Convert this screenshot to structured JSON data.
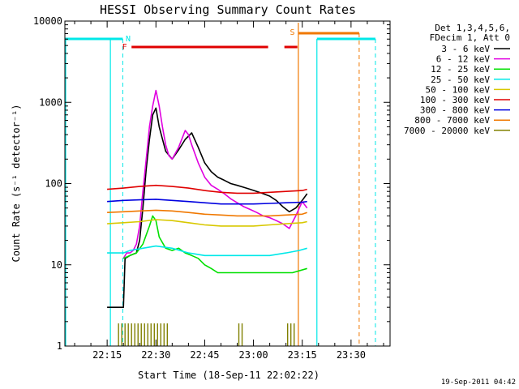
{
  "chart_data": {
    "type": "line",
    "title": "HESSI Observing Summary Count Rates",
    "xlabel": "Start Time (18-Sep-11 22:02:22)",
    "ylabel": "Count Rate (s⁻¹ detector⁻¹)",
    "y_scale": "log",
    "ylim": [
      1,
      10000
    ],
    "y_ticks": [
      1,
      10,
      100,
      1000,
      10000
    ],
    "y_tick_labels": [
      "1",
      "10",
      "100",
      "1000",
      "10000"
    ],
    "x_ticks": [
      "22:15",
      "22:30",
      "22:45",
      "23:00",
      "23:15",
      "23:30"
    ],
    "x_range_minutes": [
      0,
      100
    ],
    "x_tick_minutes": [
      13,
      28,
      43,
      58,
      73,
      88
    ],
    "legend": {
      "position": "top-right",
      "header": [
        "Det 1,3,4,5,6,",
        "FDecim 1, Att 0"
      ],
      "entries": [
        {
          "label": "3 - 6 keV",
          "color": "#000000"
        },
        {
          "label": "6 - 12 keV",
          "color": "#e000e0"
        },
        {
          "label": "12 - 25 keV",
          "color": "#00e000"
        },
        {
          "label": "25 - 50 keV",
          "color": "#00e8e8"
        },
        {
          "label": "50 - 100 keV",
          "color": "#d8c800"
        },
        {
          "label": "100 - 300 keV",
          "color": "#e00000"
        },
        {
          "label": "300 - 800 keV",
          "color": "#0000e0"
        },
        {
          "label": "800 - 7000 keV",
          "color": "#f07800"
        },
        {
          "label": "7000 - 20000 keV",
          "color": "#808000"
        }
      ]
    },
    "flags": {
      "night_label": "N",
      "flare_label": "F",
      "saa_label": "S"
    },
    "series": [
      {
        "name": "3 - 6 keV",
        "x": [
          13,
          15,
          18,
          18.5,
          20,
          22,
          23,
          24,
          25,
          26,
          27,
          28,
          29,
          31,
          33,
          35,
          37,
          39,
          41,
          43,
          45,
          47,
          49,
          51,
          53,
          55,
          57,
          59,
          61,
          63,
          65,
          67,
          69,
          71,
          73,
          74.5
        ],
        "y": [
          3,
          3,
          3,
          12,
          13,
          14,
          20,
          50,
          150,
          350,
          700,
          850,
          500,
          250,
          200,
          260,
          350,
          420,
          280,
          180,
          140,
          120,
          110,
          100,
          95,
          90,
          85,
          80,
          75,
          70,
          62,
          52,
          45,
          50,
          62,
          75
        ]
      },
      {
        "name": "6 - 12 keV",
        "x": [
          18,
          19,
          20,
          21,
          22,
          23,
          24,
          25,
          26,
          27,
          28,
          29,
          30,
          31,
          32,
          33,
          35,
          37,
          38,
          39,
          41,
          43,
          45,
          47,
          49,
          51,
          53,
          55,
          57,
          59,
          61,
          63,
          65,
          67,
          69,
          71,
          73,
          74.5
        ],
        "y": [
          12,
          14,
          14,
          15,
          18,
          30,
          80,
          200,
          500,
          900,
          1400,
          900,
          500,
          300,
          220,
          200,
          280,
          450,
          400,
          300,
          180,
          120,
          95,
          85,
          75,
          65,
          58,
          52,
          48,
          44,
          40,
          38,
          35,
          32,
          28,
          40,
          60,
          50
        ]
      },
      {
        "name": "12 - 25 keV",
        "x": [
          18,
          20,
          22,
          24,
          26,
          27,
          28,
          29,
          31,
          33,
          35,
          37,
          39,
          41,
          43,
          45,
          47,
          50,
          55,
          60,
          65,
          70,
          74.5
        ],
        "y": [
          12,
          13,
          14,
          18,
          30,
          40,
          35,
          22,
          16,
          15,
          16,
          14,
          13,
          12,
          10,
          9,
          8,
          8,
          8,
          8,
          8,
          8,
          9
        ]
      },
      {
        "name": "25 - 50 keV",
        "x": [
          13,
          18,
          20,
          24,
          28,
          33,
          38,
          43,
          48,
          53,
          58,
          63,
          68,
          72,
          74.5
        ],
        "y": [
          14,
          14,
          15,
          16,
          17,
          16,
          14,
          13,
          13,
          13,
          13,
          13,
          14,
          15,
          16
        ]
      },
      {
        "name": "50 - 100 keV",
        "x": [
          13,
          18,
          23,
          28,
          33,
          38,
          43,
          48,
          53,
          58,
          63,
          68,
          73,
          74.5
        ],
        "y": [
          32,
          33,
          34,
          36,
          35,
          33,
          31,
          30,
          30,
          30,
          31,
          32,
          33,
          34
        ]
      },
      {
        "name": "100 - 300 keV",
        "x": [
          13,
          18,
          23,
          28,
          33,
          38,
          43,
          48,
          53,
          58,
          63,
          68,
          73,
          74.5
        ],
        "y": [
          85,
          88,
          92,
          95,
          92,
          88,
          82,
          78,
          76,
          76,
          78,
          80,
          82,
          85
        ]
      },
      {
        "name": "300 - 800 keV",
        "x": [
          13,
          18,
          23,
          28,
          33,
          38,
          43,
          48,
          53,
          58,
          63,
          68,
          73,
          74.5
        ],
        "y": [
          60,
          62,
          63,
          64,
          62,
          60,
          58,
          56,
          56,
          56,
          57,
          58,
          59,
          60
        ]
      },
      {
        "name": "800 - 7000 keV",
        "x": [
          13,
          18,
          23,
          28,
          33,
          38,
          43,
          48,
          53,
          58,
          63,
          68,
          73,
          74.5
        ],
        "y": [
          44,
          45,
          46,
          47,
          46,
          44,
          42,
          41,
          40,
          40,
          40,
          41,
          42,
          44
        ]
      },
      {
        "name": "7000 - 20000 keV",
        "x": [
          16.5,
          17.5,
          18.5,
          19.5,
          20.5,
          21.5,
          22.5,
          23.5,
          24.5,
          25.5,
          26.5,
          27.5,
          28.5,
          29.5,
          30.5,
          31.5,
          53.5,
          54.5,
          68.5,
          69.5,
          70.5
        ],
        "y": [
          1.9,
          1.9,
          1.9,
          1.9,
          1.9,
          1.9,
          1.9,
          1.9,
          1.9,
          1.9,
          1.9,
          1.9,
          1.9,
          1.9,
          1.9,
          1.9,
          1.9,
          1.9,
          1.9,
          1.9,
          1.9
        ]
      }
    ]
  },
  "footer": {
    "timestamp": "19-Sep-2011 04:42"
  }
}
